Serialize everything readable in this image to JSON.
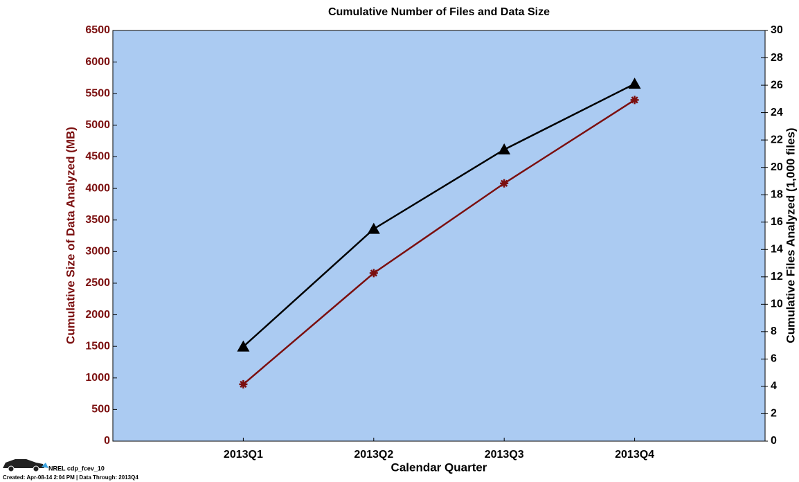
{
  "chart_data": {
    "type": "line",
    "title": "Cumulative Number of Files and Data Size",
    "x_label": "Calendar Quarter",
    "y_label": "Cumulative Size of Data Analyzed (MB)",
    "y2_label": "Cumulative Files Analyzed (1,000 files)",
    "categories": [
      "2013Q1",
      "2013Q2",
      "2013Q3",
      "2013Q4"
    ],
    "series": [
      {
        "name": "Cumulative Size of Data Analyzed (MB)",
        "color": "#7b0f0f",
        "marker": "asterisk",
        "values": [
          900,
          2660,
          4080,
          5400
        ]
      },
      {
        "name": "Cumulative Files Analyzed (1,000 files)",
        "color": "#000000",
        "marker": "triangle",
        "axis": "y2",
        "values": [
          6.9,
          15.5,
          21.3,
          26.1
        ]
      }
    ],
    "ylim": [
      0,
      6500
    ],
    "yticks": [
      0,
      500,
      1000,
      1500,
      2000,
      2500,
      3000,
      3500,
      4000,
      4500,
      5000,
      5500,
      6000,
      6500
    ],
    "y2lim": [
      0,
      30
    ],
    "y2ticks": [
      0,
      2,
      4,
      6,
      8,
      10,
      12,
      14,
      16,
      18,
      20,
      22,
      24,
      26,
      28,
      30
    ],
    "y_axis_color": "#7b0f0f",
    "plot_background": "#abcbf2",
    "footer_title": "NREL cdp_fcev_10",
    "footer_note": "Created: Apr-08-14  2:04 PM | Data Through: 2013Q4"
  }
}
